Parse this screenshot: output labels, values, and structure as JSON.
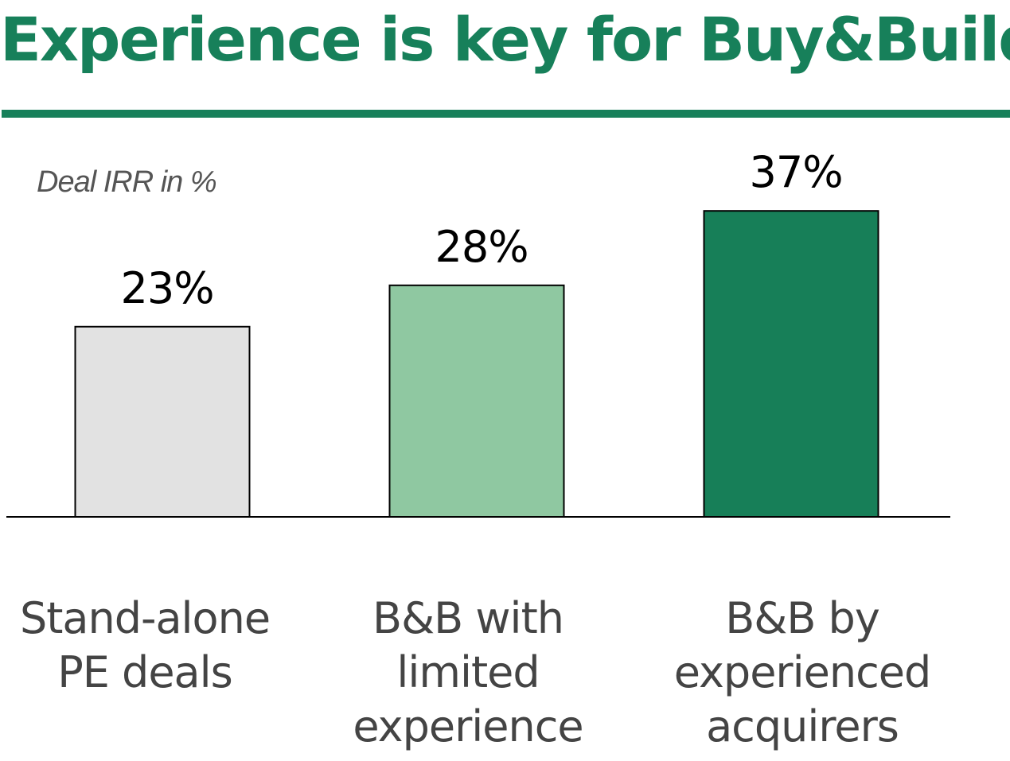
{
  "title": "Experience is key for Buy&Build",
  "chart_data": {
    "type": "bar",
    "ylabel": "Deal IRR in %",
    "categories": [
      "Stand-alone\nPE deals",
      "B&B with\nlimited\nexperience",
      "B&B by\nexperienced\nacquirers"
    ],
    "values": [
      23,
      28,
      37
    ],
    "value_labels": [
      "23%",
      "28%",
      "37%"
    ],
    "colors": [
      "#e2e2e2",
      "#8fc8a1",
      "#177f58"
    ],
    "ylim": [
      0,
      40
    ],
    "grid": false,
    "legend": "none"
  }
}
